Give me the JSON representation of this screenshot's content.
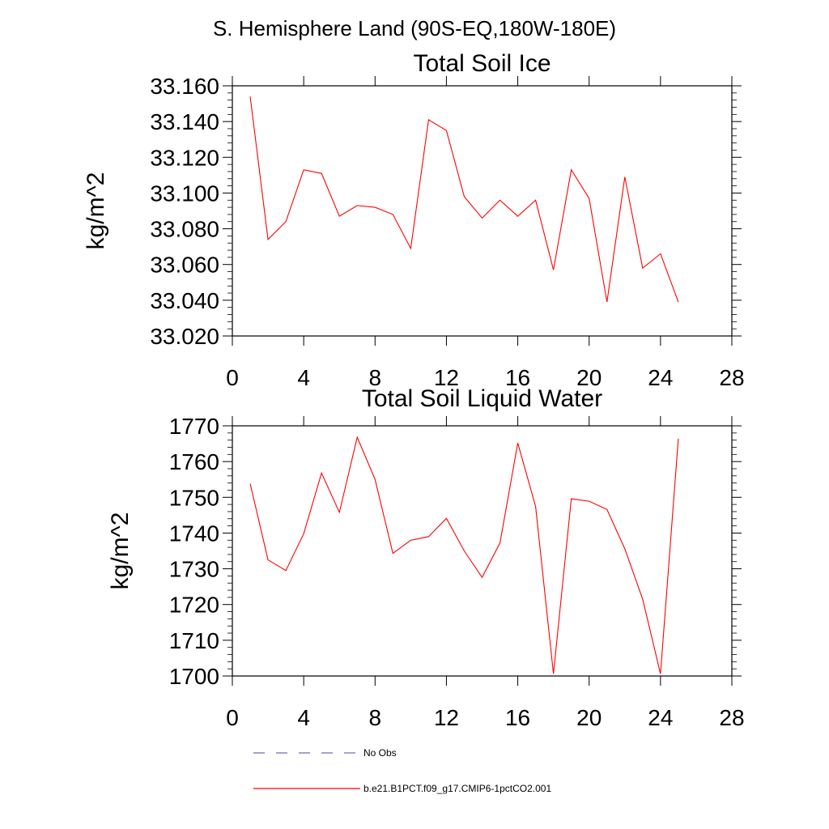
{
  "figure": {
    "main_title": "S. Hemisphere Land (90S-EQ,180W-180E)"
  },
  "chart_data": [
    {
      "type": "line",
      "title": "Total Soil Ice",
      "xlabel": "",
      "ylabel": "kg/m^2",
      "xlim": [
        0,
        28
      ],
      "ylim": [
        33.02,
        33.16
      ],
      "xticks": [
        0,
        4,
        8,
        12,
        16,
        20,
        24,
        28
      ],
      "xtick_labels": [
        "0",
        "4",
        "8",
        "12",
        "16",
        "20",
        "24",
        "28"
      ],
      "yticks": [
        33.02,
        33.04,
        33.06,
        33.08,
        33.1,
        33.12,
        33.14,
        33.16
      ],
      "ytick_labels": [
        "33.020",
        "33.040",
        "33.060",
        "33.080",
        "33.100",
        "33.120",
        "33.140",
        "33.160"
      ],
      "grid": false,
      "series": [
        {
          "name": "b.e21.B1PCT.f09_g17.CMIP6-1pctCO2.001",
          "color": "#ff0000",
          "x": [
            1,
            2,
            3,
            4,
            5,
            6,
            7,
            8,
            9,
            10,
            11,
            12,
            13,
            14,
            15,
            16,
            17,
            18,
            19,
            20,
            21,
            22,
            23,
            24,
            25
          ],
          "y": [
            33.154,
            33.074,
            33.084,
            33.113,
            33.111,
            33.087,
            33.093,
            33.092,
            33.088,
            33.069,
            33.141,
            33.135,
            33.098,
            33.086,
            33.096,
            33.087,
            33.096,
            33.057,
            33.113,
            33.097,
            33.039,
            33.109,
            33.058,
            33.066,
            33.039
          ]
        }
      ]
    },
    {
      "type": "line",
      "title": "Total Soil Liquid Water",
      "xlabel": "",
      "ylabel": "kg/m^2",
      "xlim": [
        0,
        28
      ],
      "ylim": [
        1700,
        1770
      ],
      "xticks": [
        0,
        4,
        8,
        12,
        16,
        20,
        24,
        28
      ],
      "xtick_labels": [
        "0",
        "4",
        "8",
        "12",
        "16",
        "20",
        "24",
        "28"
      ],
      "yticks": [
        1700,
        1710,
        1720,
        1730,
        1740,
        1750,
        1760,
        1770
      ],
      "ytick_labels": [
        "1700",
        "1710",
        "1720",
        "1730",
        "1740",
        "1750",
        "1760",
        "1770"
      ],
      "grid": false,
      "series": [
        {
          "name": "b.e21.B1PCT.f09_g17.CMIP6-1pctCO2.001",
          "color": "#ff0000",
          "x": [
            1,
            2,
            3,
            4,
            5,
            6,
            7,
            8,
            9,
            10,
            11,
            12,
            13,
            14,
            15,
            16,
            17,
            18,
            19,
            20,
            21,
            22,
            23,
            24,
            25
          ],
          "y": [
            1753.8,
            1732.5,
            1729.5,
            1739.8,
            1756.8,
            1745.8,
            1766.8,
            1755.0,
            1734.3,
            1738.0,
            1739.0,
            1744.1,
            1735.0,
            1727.6,
            1737.2,
            1765.2,
            1747.4,
            1700.6,
            1749.6,
            1748.9,
            1746.6,
            1735.6,
            1721.5,
            1700.6,
            1766.4
          ]
        }
      ]
    }
  ],
  "legend": {
    "placement": "bottom-center",
    "items": [
      {
        "label": "No Obs",
        "color": "#6a6fb0",
        "style": "dashed"
      },
      {
        "label": "b.e21.B1PCT.f09_g17.CMIP6-1pctCO2.001",
        "color": "#ff0000",
        "style": "solid"
      }
    ]
  }
}
